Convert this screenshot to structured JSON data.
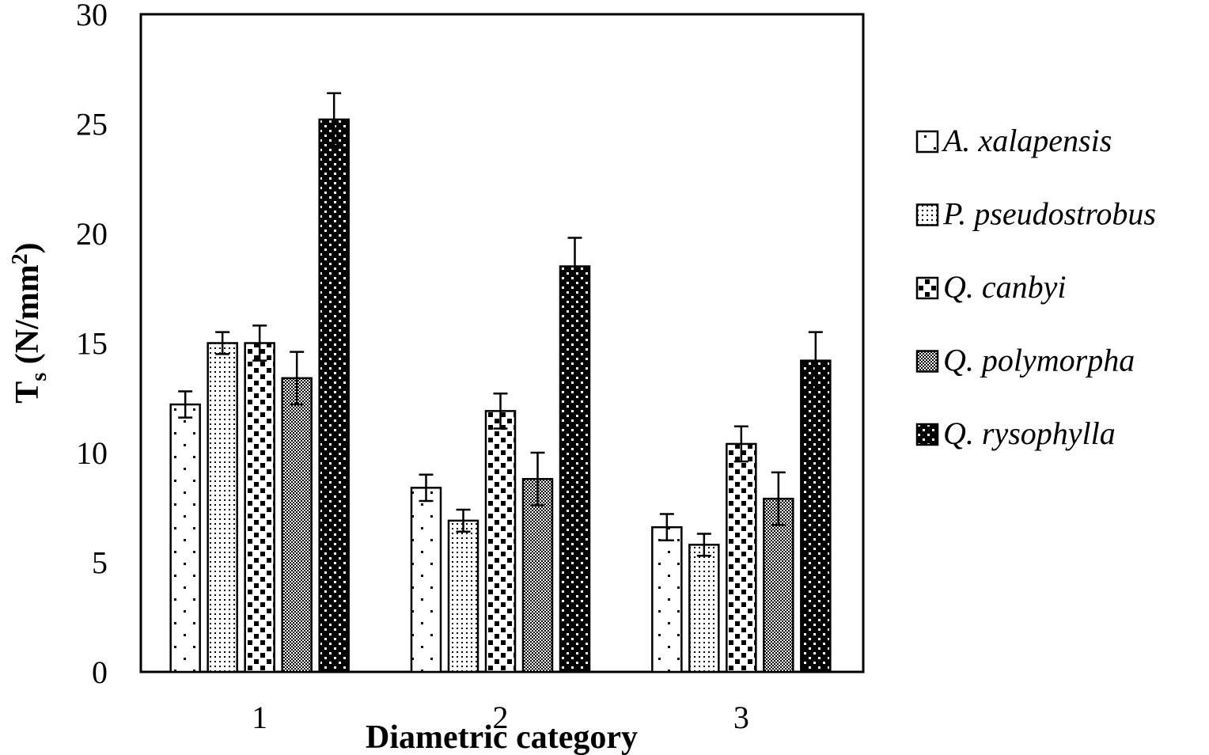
{
  "chart_data": {
    "type": "bar",
    "title": "",
    "xlabel": "Diametric category",
    "ylabel_main": "T",
    "ylabel_sub": "s",
    "ylabel_unit_open": " (N/mm",
    "ylabel_unit_sup": "2",
    "ylabel_unit_close": ")",
    "ylim": [
      0,
      30
    ],
    "yticks": [
      "0",
      "5",
      "10",
      "15",
      "20",
      "25",
      "30"
    ],
    "categories": [
      "1",
      "2",
      "3"
    ],
    "legend_position": "right",
    "series": [
      {
        "name": "A. xalapensis",
        "pattern": "sparse-dots",
        "values": [
          12.2,
          8.4,
          6.6
        ],
        "errors": [
          0.6,
          0.6,
          0.6
        ]
      },
      {
        "name": "P. pseudostrobus",
        "pattern": "fine-dots",
        "values": [
          15.0,
          6.9,
          5.8
        ],
        "errors": [
          0.5,
          0.5,
          0.5
        ]
      },
      {
        "name": "Q. canbyi",
        "pattern": "checker-squares",
        "values": [
          15.0,
          11.9,
          10.4
        ],
        "errors": [
          0.8,
          0.8,
          0.8
        ]
      },
      {
        "name": "Q. polymorpha",
        "pattern": "dense-checker",
        "values": [
          13.4,
          8.8,
          7.9
        ],
        "errors": [
          1.2,
          1.2,
          1.2
        ]
      },
      {
        "name": "Q. rysophylla",
        "pattern": "black-dots",
        "values": [
          25.2,
          18.5,
          14.2
        ],
        "errors": [
          1.2,
          1.3,
          1.3
        ]
      }
    ]
  }
}
